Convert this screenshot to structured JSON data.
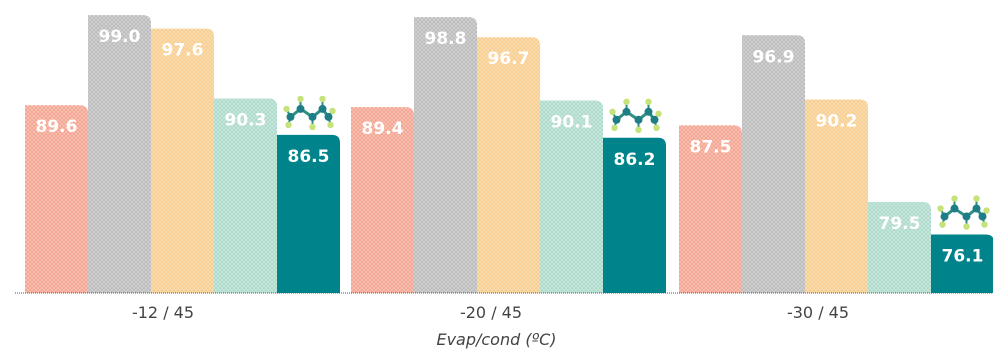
{
  "chart_data": {
    "type": "bar",
    "categories": [
      "-12 / 45",
      "-20 / 45",
      "-30 / 45"
    ],
    "xlabel": "Evap/cond (ºC)",
    "ylabel": "",
    "ylim": [
      70,
      100
    ],
    "grid": false,
    "legend": "none",
    "series": [
      {
        "values": [
          89.6,
          89.4,
          87.5
        ],
        "color": "#f4a08c",
        "pattern": true,
        "label_color": "#ffffff"
      },
      {
        "values": [
          99.0,
          98.8,
          96.9
        ],
        "color": "#b8b8b8",
        "pattern": true,
        "label_color": "#ffffff"
      },
      {
        "values": [
          97.6,
          96.7,
          90.2
        ],
        "color": "#f7cb8a",
        "pattern": true,
        "label_color": "#ffffff"
      },
      {
        "values": [
          90.3,
          90.1,
          79.5
        ],
        "color": "#a9d9c9",
        "pattern": true,
        "label_color": "#ffffff"
      },
      {
        "values": [
          86.5,
          86.2,
          76.1
        ],
        "color": "#00838a",
        "pattern": false,
        "label_color": "#ffffff",
        "marker": "molecule-icon"
      }
    ]
  },
  "xlabel_text": "Evap/cond (ºC)"
}
